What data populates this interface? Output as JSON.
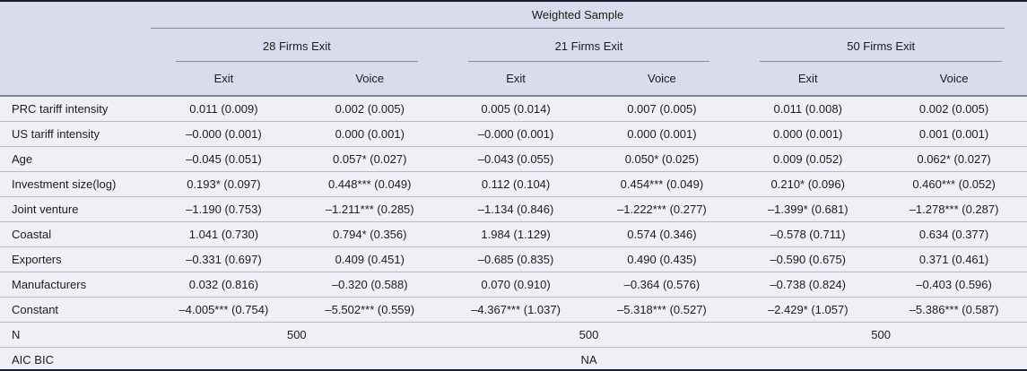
{
  "table": {
    "top_header": "Weighted Sample",
    "groups": [
      {
        "label": "28 Firms Exit"
      },
      {
        "label": "21 Firms Exit"
      },
      {
        "label": "50 Firms Exit"
      }
    ],
    "col_headers": [
      "Exit",
      "Voice",
      "Exit",
      "Voice",
      "Exit",
      "Voice"
    ],
    "rows": [
      {
        "label": "PRC tariff intensity",
        "cells": [
          "0.011 (0.009)",
          "0.002 (0.005)",
          "0.005 (0.014)",
          "0.007 (0.005)",
          "0.011 (0.008)",
          "0.002 (0.005)"
        ]
      },
      {
        "label": "US tariff intensity",
        "cells": [
          "–0.000 (0.001)",
          "0.000 (0.001)",
          "–0.000 (0.001)",
          "0.000 (0.001)",
          "0.000 (0.001)",
          "0.001 (0.001)"
        ]
      },
      {
        "label": "Age",
        "cells": [
          "–0.045 (0.051)",
          "0.057* (0.027)",
          "–0.043 (0.055)",
          "0.050* (0.025)",
          "0.009 (0.052)",
          "0.062* (0.027)"
        ]
      },
      {
        "label": "Investment size(log)",
        "cells": [
          "0.193* (0.097)",
          "0.448*** (0.049)",
          "0.112 (0.104)",
          "0.454*** (0.049)",
          "0.210* (0.096)",
          "0.460*** (0.052)"
        ]
      },
      {
        "label": "Joint venture",
        "cells": [
          "–1.190 (0.753)",
          "–1.211*** (0.285)",
          "–1.134 (0.846)",
          "–1.222*** (0.277)",
          "–1.399* (0.681)",
          "–1.278*** (0.287)"
        ]
      },
      {
        "label": "Coastal",
        "cells": [
          "1.041 (0.730)",
          "0.794* (0.356)",
          "1.984 (1.129)",
          "0.574 (0.346)",
          "–0.578 (0.711)",
          "0.634 (0.377)"
        ]
      },
      {
        "label": "Exporters",
        "cells": [
          "–0.331 (0.697)",
          "0.409 (0.451)",
          "–0.685 (0.835)",
          "0.490 (0.435)",
          "–0.590 (0.675)",
          "0.371 (0.461)"
        ]
      },
      {
        "label": "Manufacturers",
        "cells": [
          "0.032 (0.816)",
          "–0.320 (0.588)",
          "0.070 (0.910)",
          "–0.364 (0.576)",
          "–0.738 (0.824)",
          "–0.403 (0.596)"
        ]
      },
      {
        "label": "Constant",
        "cells": [
          "–4.005*** (0.754)",
          "–5.502*** (0.559)",
          "–4.367*** (1.037)",
          "–5.318*** (0.527)",
          "–2.429* (1.057)",
          "–5.386*** (0.587)"
        ]
      }
    ],
    "n_row": {
      "label": "N",
      "values": [
        "500",
        "500",
        "500"
      ]
    },
    "aic_row": {
      "label": "AIC BIC",
      "values": [
        "",
        "NA",
        ""
      ]
    }
  },
  "colors": {
    "header_bg": "#d8dcec",
    "body_bg": "#eef0f6",
    "rule_dark": "#191d30",
    "rule_medium": "#81859a",
    "rule_light": "#b5b9c9",
    "text": "#1c1c1c"
  }
}
